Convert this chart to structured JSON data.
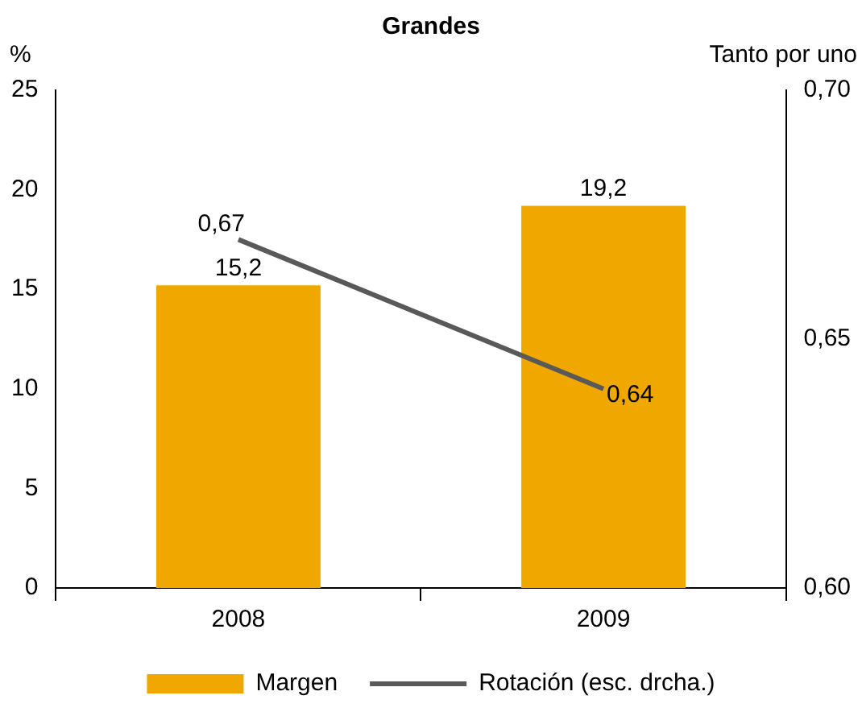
{
  "chart_data": {
    "type": "bar",
    "title": "Grandes",
    "ylabel": "%",
    "y2label": "Tanto por uno",
    "categories": [
      "2008",
      "2009"
    ],
    "series": [
      {
        "name": "Margen",
        "color": "#f0a800",
        "values": [
          15.2,
          19.2
        ],
        "value_labels": [
          "15,2",
          "19,2"
        ]
      },
      {
        "name": "Rotación (esc. drcha.)",
        "type": "line",
        "axis": "y2",
        "color": "#595959",
        "values": [
          0.67,
          0.64
        ],
        "value_labels": [
          "0,67",
          "0,64"
        ]
      }
    ],
    "ylim": [
      0,
      25
    ],
    "yticks": [
      0,
      5,
      10,
      15,
      20,
      25
    ],
    "y2lim": [
      0.6,
      0.7
    ],
    "y2ticks": [
      {
        "value": 0.6,
        "label": "0,60"
      },
      {
        "value": 0.65,
        "label": "0,65"
      },
      {
        "value": 0.7,
        "label": "0,70"
      }
    ],
    "grid": false,
    "legend": "bottom",
    "marker": "none",
    "line_style": "solid"
  }
}
